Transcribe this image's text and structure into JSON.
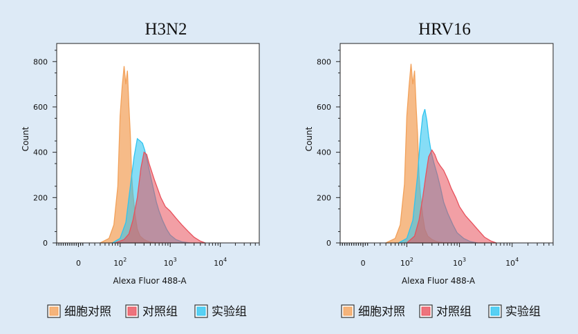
{
  "chart_data": [
    {
      "type": "area",
      "title": "H3N2",
      "xlabel": "Alexa Fluor 488-A",
      "ylabel": "Count",
      "xscale": "biexponential",
      "x_ticks": [
        "0",
        "10^2",
        "10^3",
        "10^4"
      ],
      "y_ticks": [
        0,
        200,
        400,
        600,
        800
      ],
      "ylim": [
        0,
        880
      ],
      "xlim": [
        -40,
        60000
      ],
      "legend": "bottom",
      "series": [
        {
          "name": "细胞对照",
          "color": "#f2a15a",
          "x": [
            40,
            60,
            75,
            90,
            100,
            110,
            120,
            130,
            140,
            150,
            160,
            170,
            180,
            200,
            220,
            250,
            300,
            350,
            400,
            500,
            700
          ],
          "y": [
            0,
            20,
            80,
            250,
            560,
            690,
            780,
            700,
            760,
            600,
            480,
            300,
            220,
            120,
            60,
            30,
            15,
            8,
            4,
            1,
            0
          ]
        },
        {
          "name": "对照组",
          "color": "#e8505b",
          "x": [
            80,
            120,
            150,
            180,
            220,
            260,
            300,
            340,
            380,
            420,
            480,
            560,
            650,
            800,
            1000,
            1300,
            1700,
            2300,
            3000,
            4000,
            5000
          ],
          "y": [
            0,
            15,
            40,
            100,
            200,
            330,
            400,
            390,
            350,
            320,
            280,
            240,
            200,
            160,
            140,
            110,
            80,
            50,
            25,
            8,
            0
          ]
        },
        {
          "name": "实验组",
          "color": "#2ec4f0",
          "x": [
            70,
            100,
            130,
            160,
            190,
            220,
            250,
            280,
            310,
            350,
            400,
            460,
            530,
            600,
            700,
            850,
            1000,
            1300,
            1700,
            2500
          ],
          "y": [
            0,
            20,
            90,
            250,
            380,
            460,
            450,
            440,
            410,
            360,
            300,
            240,
            180,
            140,
            100,
            60,
            35,
            15,
            5,
            0
          ]
        }
      ]
    },
    {
      "type": "area",
      "title": "HRV16",
      "xlabel": "Alexa Fluor 488-A",
      "ylabel": "Count",
      "xscale": "biexponential",
      "x_ticks": [
        "0",
        "10^2",
        "10^3",
        "10^4"
      ],
      "y_ticks": [
        0,
        200,
        400,
        600,
        800
      ],
      "ylim": [
        0,
        880
      ],
      "xlim": [
        -40,
        60000
      ],
      "legend": "bottom",
      "series": [
        {
          "name": "细胞对照",
          "color": "#f2a15a",
          "x": [
            40,
            60,
            75,
            90,
            100,
            110,
            120,
            130,
            140,
            150,
            160,
            170,
            180,
            200,
            220,
            250,
            300,
            350,
            400,
            500,
            700
          ],
          "y": [
            0,
            20,
            80,
            260,
            560,
            690,
            790,
            700,
            760,
            600,
            480,
            300,
            220,
            120,
            60,
            30,
            15,
            8,
            4,
            1,
            0
          ]
        },
        {
          "name": "对照组",
          "color": "#e8505b",
          "x": [
            100,
            140,
            170,
            200,
            230,
            260,
            300,
            340,
            380,
            430,
            500,
            600,
            700,
            850,
            1000,
            1300,
            1700,
            2300,
            3000,
            4000,
            5000
          ],
          "y": [
            0,
            30,
            100,
            200,
            300,
            380,
            410,
            390,
            360,
            340,
            320,
            280,
            240,
            200,
            160,
            120,
            90,
            55,
            25,
            8,
            0
          ]
        },
        {
          "name": "实验组",
          "color": "#2ec4f0",
          "x": [
            70,
            100,
            130,
            160,
            180,
            200,
            220,
            240,
            260,
            290,
            330,
            380,
            440,
            500,
            600,
            750,
            900,
            1200,
            1600,
            2200
          ],
          "y": [
            0,
            20,
            100,
            300,
            460,
            560,
            590,
            540,
            470,
            400,
            350,
            300,
            240,
            180,
            130,
            80,
            45,
            20,
            6,
            0
          ]
        }
      ]
    }
  ]
}
